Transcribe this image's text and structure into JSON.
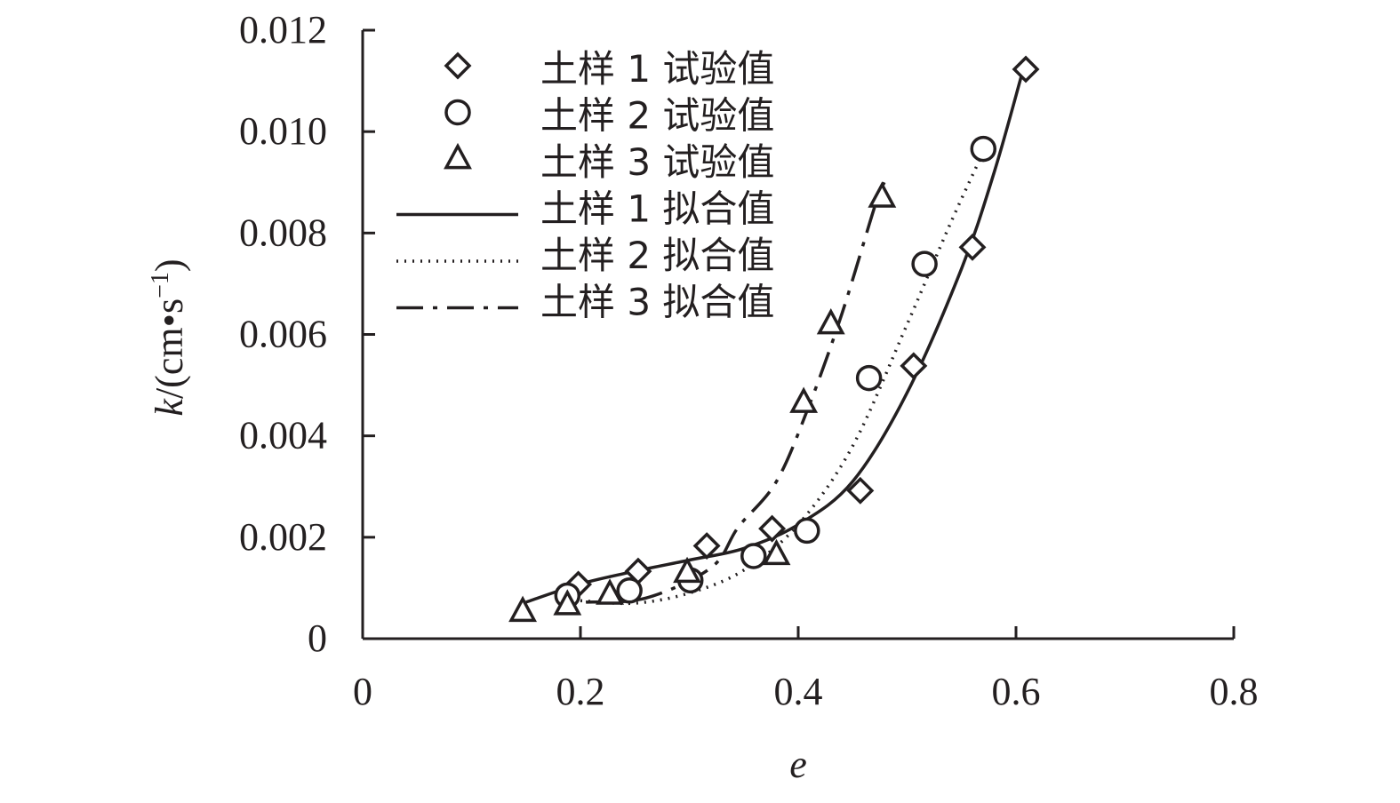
{
  "chart_data": {
    "type": "scatter",
    "xlabel": "e",
    "ylabel": {
      "prefix": "k",
      "unit_open": "/(cm",
      "dot": "•",
      "s": "s",
      "exp": "−1",
      "close": ")"
    },
    "xlim": [
      0,
      0.8
    ],
    "ylim": [
      0,
      0.012
    ],
    "x_ticks": [
      {
        "v": 0,
        "label": "0"
      },
      {
        "v": 0.2,
        "label": "0.2"
      },
      {
        "v": 0.4,
        "label": "0.4"
      },
      {
        "v": 0.6,
        "label": "0.6"
      },
      {
        "v": 0.8,
        "label": "0.8"
      }
    ],
    "y_ticks": [
      {
        "v": 0,
        "label": "0"
      },
      {
        "v": 0.002,
        "label": "0.002"
      },
      {
        "v": 0.004,
        "label": "0.004"
      },
      {
        "v": 0.006,
        "label": "0.006"
      },
      {
        "v": 0.008,
        "label": "0.008"
      },
      {
        "v": 0.01,
        "label": "0.010"
      },
      {
        "v": 0.012,
        "label": "0.012"
      }
    ],
    "grid": false,
    "legend_position": "top-left",
    "series": [
      {
        "name": "土样 1 试验值",
        "kind": "points",
        "marker": "diamond",
        "points": [
          [
            0.198,
            0.00107
          ],
          [
            0.253,
            0.00133
          ],
          [
            0.316,
            0.00183
          ],
          [
            0.376,
            0.00217
          ],
          [
            0.457,
            0.00292
          ],
          [
            0.506,
            0.00538
          ],
          [
            0.56,
            0.00772
          ],
          [
            0.609,
            0.01123
          ]
        ]
      },
      {
        "name": "土样 2 试验值",
        "kind": "points",
        "marker": "circle",
        "points": [
          [
            0.188,
            0.00085
          ],
          [
            0.245,
            0.00095
          ],
          [
            0.301,
            0.00115
          ],
          [
            0.359,
            0.00163
          ],
          [
            0.408,
            0.00213
          ],
          [
            0.465,
            0.00514
          ],
          [
            0.516,
            0.00739
          ],
          [
            0.57,
            0.00966
          ]
        ]
      },
      {
        "name": "土样 3 试验值",
        "kind": "points",
        "marker": "triangle",
        "points": [
          [
            0.147,
            0.00053
          ],
          [
            0.188,
            0.00066
          ],
          [
            0.227,
            0.00087
          ],
          [
            0.298,
            0.0013
          ],
          [
            0.38,
            0.00165
          ],
          [
            0.405,
            0.00465
          ],
          [
            0.43,
            0.0062
          ],
          [
            0.477,
            0.0087
          ]
        ]
      },
      {
        "name": "土样 1 拟合值",
        "kind": "line",
        "dash": "solid",
        "points": [
          [
            0.15,
            0.00072
          ],
          [
            0.2,
            0.00108
          ],
          [
            0.25,
            0.00133
          ],
          [
            0.3,
            0.00155
          ],
          [
            0.35,
            0.00178
          ],
          [
            0.4,
            0.00225
          ],
          [
            0.45,
            0.0031
          ],
          [
            0.5,
            0.00485
          ],
          [
            0.55,
            0.0073
          ],
          [
            0.58,
            0.0092
          ],
          [
            0.605,
            0.0111
          ]
        ]
      },
      {
        "name": "土样 2 拟合值",
        "kind": "line",
        "dash": "dotted",
        "points": [
          [
            0.2,
            0.00075
          ],
          [
            0.25,
            0.0007
          ],
          [
            0.3,
            0.0009
          ],
          [
            0.35,
            0.00135
          ],
          [
            0.4,
            0.00225
          ],
          [
            0.45,
            0.0038
          ],
          [
            0.5,
            0.0062
          ],
          [
            0.54,
            0.0082
          ],
          [
            0.57,
            0.0096
          ]
        ]
      },
      {
        "name": "土样 3 拟合值",
        "kind": "line",
        "dash": "dashdot",
        "points": [
          [
            0.205,
            0.00072
          ],
          [
            0.26,
            0.0008
          ],
          [
            0.32,
            0.0014
          ],
          [
            0.345,
            0.0022
          ],
          [
            0.38,
            0.0031
          ],
          [
            0.41,
            0.0046
          ],
          [
            0.44,
            0.0064
          ],
          [
            0.47,
            0.0085
          ],
          [
            0.479,
            0.009
          ]
        ]
      }
    ]
  }
}
